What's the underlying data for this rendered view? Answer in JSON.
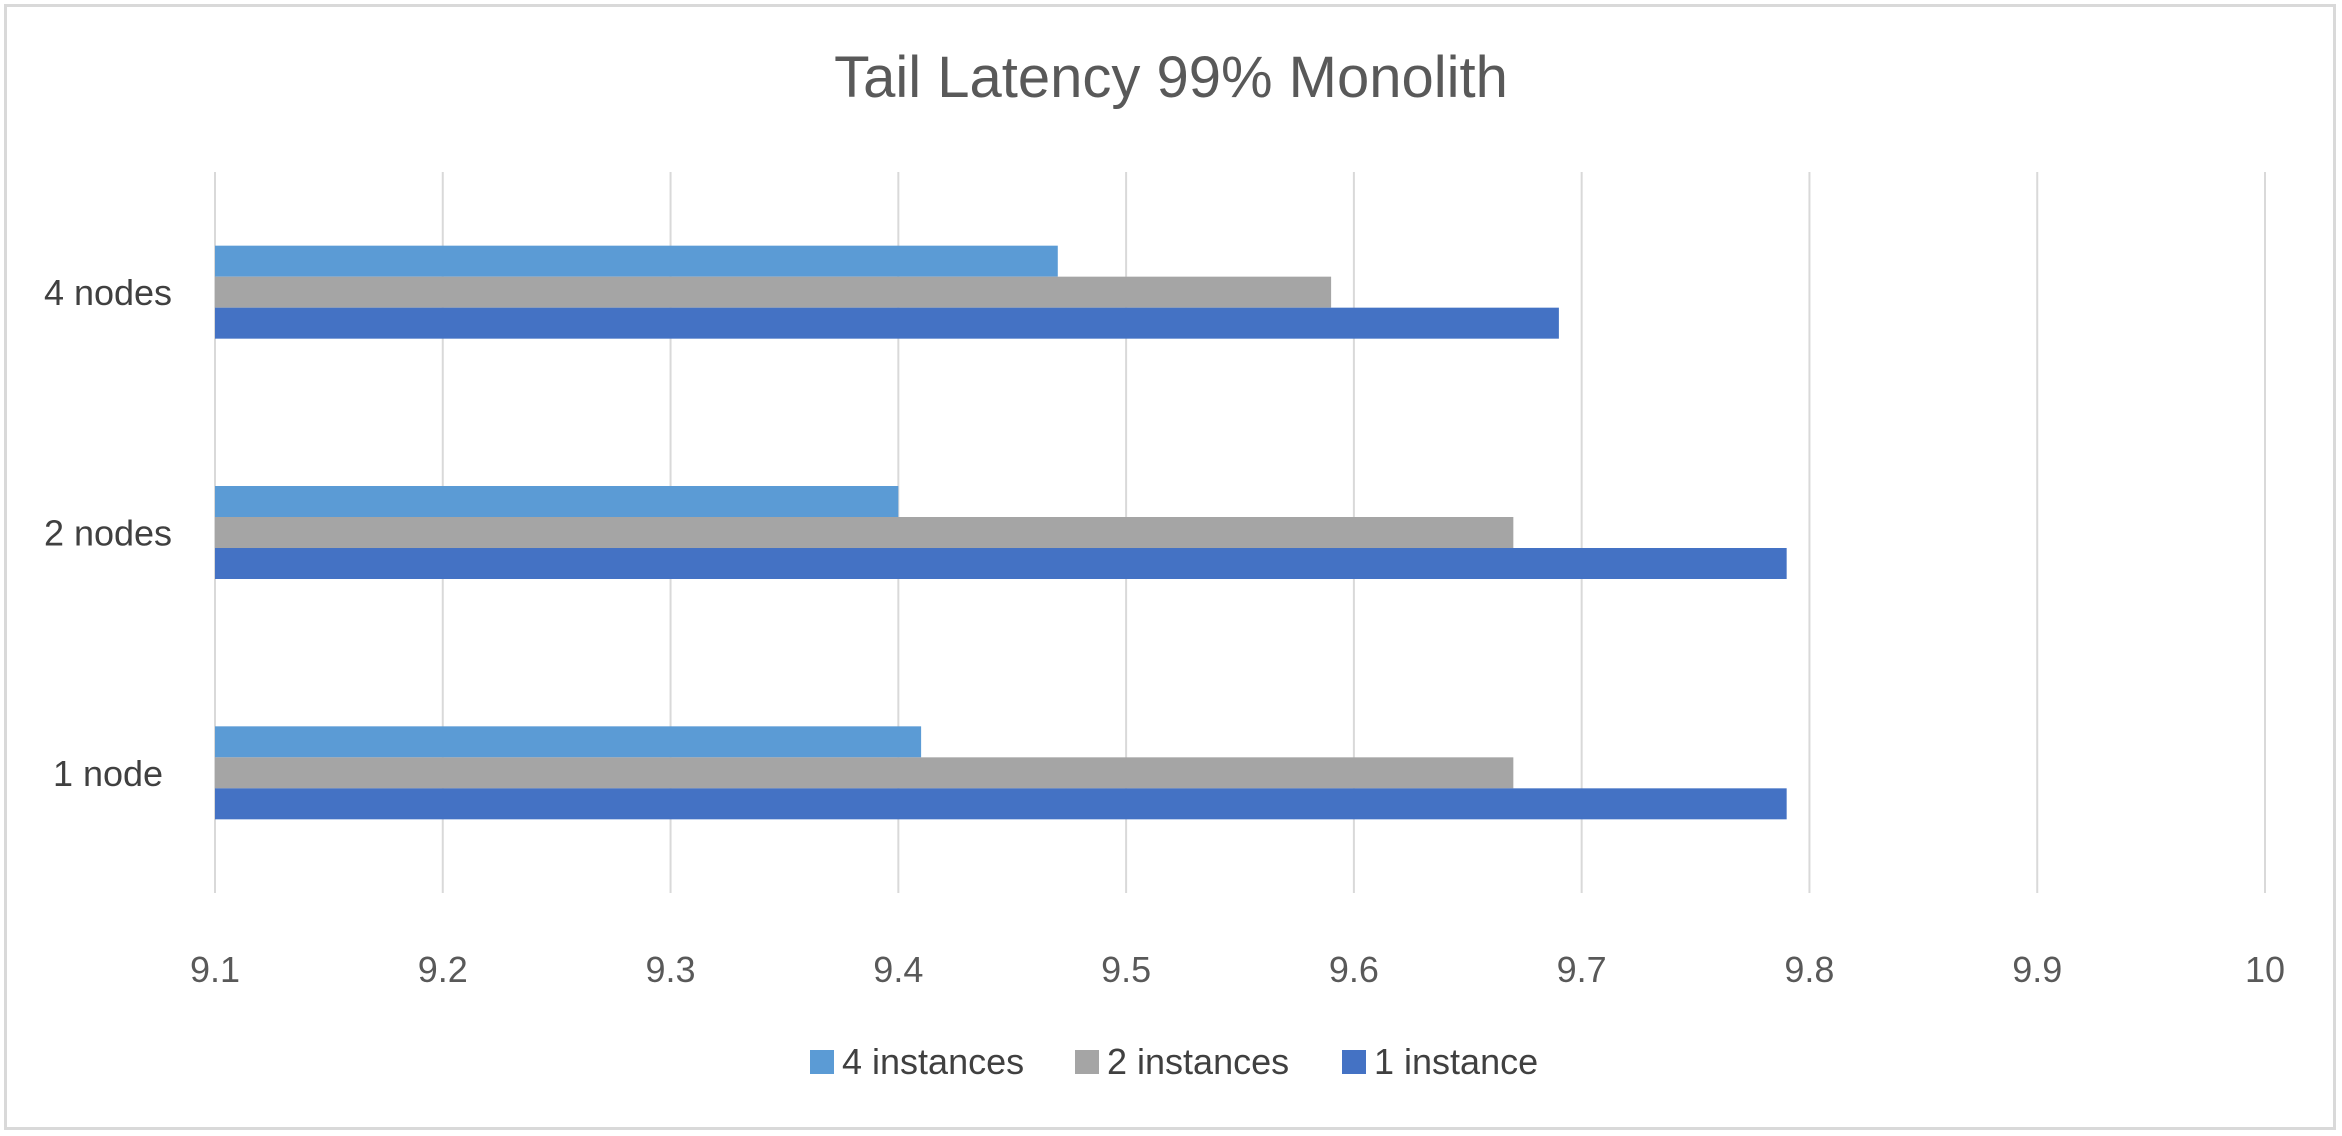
{
  "chart_data": {
    "type": "bar",
    "orientation": "horizontal",
    "title": "Tail Latency 99% Monolith",
    "categories": [
      "1 node",
      "2 nodes",
      "4 nodes"
    ],
    "series": [
      {
        "name": "1 instance",
        "color": "#4472c4",
        "values": [
          9.79,
          9.79,
          9.69
        ]
      },
      {
        "name": "2 instances",
        "color": "#a5a5a5",
        "values": [
          9.67,
          9.67,
          9.59
        ]
      },
      {
        "name": "4 instances",
        "color": "#5b9bd5",
        "values": [
          9.41,
          9.4,
          9.47
        ]
      }
    ],
    "xlim": [
      9.1,
      10
    ],
    "xticks": [
      "9.1",
      "9.2",
      "9.3",
      "9.4",
      "9.5",
      "9.6",
      "9.7",
      "9.8",
      "9.9",
      "10"
    ],
    "legend_order": [
      "4 instances",
      "2 instances",
      "1 instance"
    ],
    "legend_position": "bottom",
    "grid": "vertical"
  }
}
